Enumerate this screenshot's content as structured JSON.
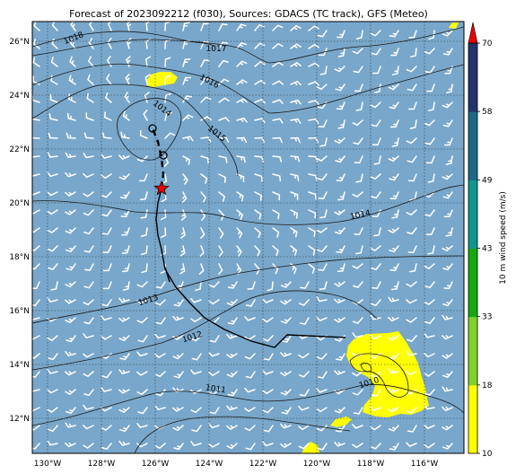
{
  "title": "Forecast of 2023092212 (f030), Sources: GDACS (TC track), GFS (Meteo)",
  "colors": {
    "ocean": "#78a7cb",
    "land": "#ffff00",
    "track": "#000000",
    "current_position_star": "#ee0000",
    "barbs": "#ffffff",
    "contours": "#1a1a1a",
    "grid": "#333333"
  },
  "map": {
    "lon_labels": [
      "130°W",
      "128°W",
      "126°W",
      "124°W",
      "122°W",
      "120°W",
      "118°W",
      "116°W"
    ],
    "lat_labels": [
      "12°N",
      "14°N",
      "16°N",
      "18°N",
      "20°N",
      "22°N",
      "24°N",
      "26°N"
    ],
    "isobar_labels": [
      "1018",
      "1017",
      "1016",
      "1014",
      "1015",
      "1014",
      "1013",
      "1012",
      "1011",
      "1010"
    ]
  },
  "colorbar": {
    "label": "10 m wind speed (m/s)",
    "ticks": [
      "10",
      "18",
      "33",
      "43",
      "49",
      "58",
      "70"
    ],
    "bands": [
      {
        "color": "#ffff00"
      },
      {
        "color": "#7fd22a"
      },
      {
        "color": "#11aa11"
      },
      {
        "color": "#0f9590"
      },
      {
        "color": "#1b6a8a"
      },
      {
        "color": "#22356b"
      }
    ],
    "arrow_color": "#ee0000"
  }
}
